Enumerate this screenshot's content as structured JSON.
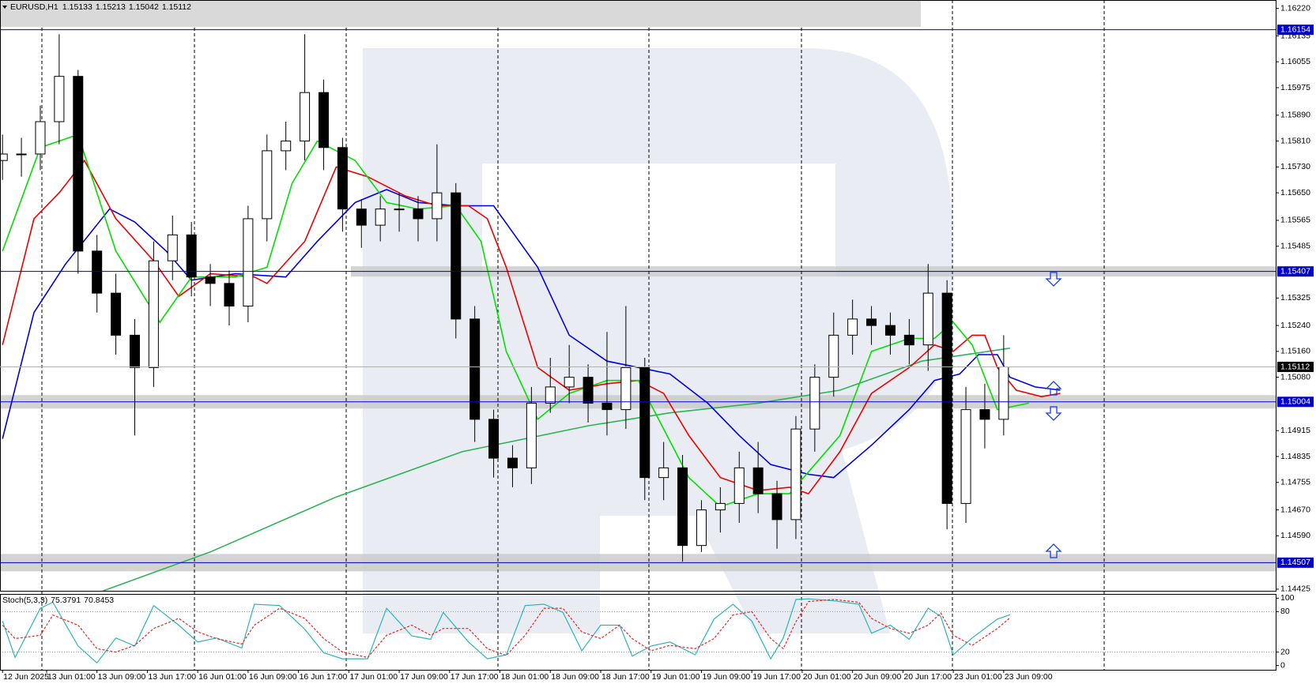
{
  "chart_data": {
    "type": "candlestick",
    "title": "EURUSD,H1",
    "header_values": [
      1.15133,
      1.15213,
      1.15042,
      1.15112
    ],
    "x": [
      0,
      3,
      6,
      9,
      12,
      15,
      18,
      21,
      24,
      27,
      30,
      33,
      36,
      39,
      42,
      45,
      48,
      51,
      54,
      57,
      60,
      63,
      66,
      69,
      72,
      75,
      78,
      81,
      84,
      87,
      90,
      93,
      96,
      99,
      102,
      105,
      108,
      111,
      114,
      117,
      120,
      123,
      126,
      129,
      132,
      135,
      138,
      141,
      144,
      147,
      150,
      153,
      156,
      159
    ],
    "open": [
      1.1575,
      1.1577,
      1.1577,
      1.1587,
      1.1601,
      1.1547,
      1.1534,
      1.1521,
      1.1511,
      1.1544,
      1.1552,
      1.1539,
      1.1537,
      1.153,
      1.1557,
      1.1578,
      1.1581,
      1.1596,
      1.1579,
      1.156,
      1.1555,
      1.156,
      1.156,
      1.1557,
      1.1565,
      1.1526,
      1.1495,
      1.1483,
      1.148,
      1.15,
      1.1505,
      1.1508,
      1.15,
      1.1498,
      1.1511,
      1.1477,
      1.148,
      1.1456,
      1.1467,
      1.1469,
      1.148,
      1.1472,
      1.1464,
      1.1492,
      1.1508,
      1.1521,
      1.1526,
      1.1524,
      1.1521,
      1.1518,
      1.1534,
      1.1469,
      1.1498,
      1.1495
    ],
    "high": [
      1.1583,
      1.1582,
      1.1592,
      1.1614,
      1.1603,
      1.1552,
      1.154,
      1.1526,
      1.155,
      1.1558,
      1.1556,
      1.1543,
      1.1541,
      1.1561,
      1.1583,
      1.1587,
      1.1614,
      1.16,
      1.1582,
      1.1563,
      1.1564,
      1.1565,
      1.1564,
      1.158,
      1.1568,
      1.153,
      1.1498,
      1.1487,
      1.1505,
      1.1514,
      1.1518,
      1.1512,
      1.1522,
      1.153,
      1.1514,
      1.1488,
      1.1484,
      1.147,
      1.1474,
      1.1485,
      1.1488,
      1.1476,
      1.1496,
      1.1512,
      1.1528,
      1.1532,
      1.153,
      1.1528,
      1.1526,
      1.1543,
      1.1538,
      1.1505,
      1.1506,
      1.1521
    ],
    "low": [
      1.1569,
      1.157,
      1.1572,
      1.158,
      1.154,
      1.1528,
      1.1515,
      1.149,
      1.1505,
      1.1538,
      1.1533,
      1.153,
      1.1524,
      1.1525,
      1.155,
      1.1572,
      1.1575,
      1.1572,
      1.1553,
      1.1548,
      1.155,
      1.1553,
      1.155,
      1.155,
      1.152,
      1.1488,
      1.1477,
      1.1474,
      1.1475,
      1.1497,
      1.15,
      1.1494,
      1.149,
      1.1492,
      1.147,
      1.147,
      1.1451,
      1.1454,
      1.146,
      1.1463,
      1.1466,
      1.1455,
      1.1458,
      1.1485,
      1.1502,
      1.1515,
      1.1518,
      1.1515,
      1.1512,
      1.151,
      1.1461,
      1.1463,
      1.1486,
      1.149
    ],
    "close": [
      1.1577,
      1.1577,
      1.1587,
      1.1601,
      1.1547,
      1.1534,
      1.1521,
      1.1511,
      1.1544,
      1.1552,
      1.1539,
      1.1537,
      1.153,
      1.1557,
      1.1578,
      1.1581,
      1.1596,
      1.1579,
      1.156,
      1.1555,
      1.156,
      1.156,
      1.1557,
      1.1565,
      1.1526,
      1.1495,
      1.1483,
      1.148,
      1.15,
      1.1505,
      1.1508,
      1.15,
      1.1498,
      1.1511,
      1.1477,
      1.148,
      1.1456,
      1.1467,
      1.1469,
      1.148,
      1.1472,
      1.1464,
      1.1492,
      1.1508,
      1.1521,
      1.1526,
      1.1524,
      1.1521,
      1.1518,
      1.1534,
      1.1469,
      1.1498,
      1.1495,
      1.15112
    ],
    "up_color": "#ffffff",
    "down_color": "#000000",
    "lines": [
      {
        "color": "#2db356",
        "x": [
          16,
          33,
          53,
          73,
          93,
          106,
          120,
          133,
          146,
          160
        ],
        "values": [
          1.1442,
          1.1454,
          1.1471,
          1.1485,
          1.1493,
          1.1497,
          1.15,
          1.1504,
          1.1513,
          1.1517
        ]
      },
      {
        "color": "#0000e0",
        "x": [
          0,
          5,
          10,
          17,
          21,
          26,
          30,
          37,
          45,
          50,
          56,
          61,
          66,
          72,
          78,
          85,
          90,
          96,
          101,
          106,
          112,
          117,
          122,
          128,
          132,
          138,
          144,
          148,
          152,
          155,
          158,
          160,
          164,
          168
        ],
        "values": [
          1.1489,
          1.1528,
          1.1543,
          1.156,
          1.1556,
          1.1547,
          1.1538,
          1.154,
          1.1539,
          1.155,
          1.1562,
          1.1566,
          1.1562,
          1.1561,
          1.1561,
          1.1542,
          1.1521,
          1.1513,
          1.1511,
          1.1509,
          1.15,
          1.149,
          1.1481,
          1.1478,
          1.1477,
          1.1487,
          1.1498,
          1.1507,
          1.1509,
          1.1515,
          1.1515,
          1.1508,
          1.1505,
          1.1504
        ]
      },
      {
        "color": "#ee0000",
        "x": [
          0,
          5,
          9,
          13,
          18,
          24,
          28,
          33,
          40,
          42,
          48,
          53,
          58,
          64,
          69,
          74,
          77,
          80,
          85,
          90,
          96,
          101,
          105,
          109,
          114,
          120,
          125,
          128,
          133,
          138,
          144,
          148,
          151,
          154,
          156,
          158,
          161,
          165,
          168
        ],
        "values": [
          1.1518,
          1.1557,
          1.1565,
          1.1575,
          1.1557,
          1.1544,
          1.1533,
          1.154,
          1.1539,
          1.1537,
          1.155,
          1.1573,
          1.157,
          1.1564,
          1.1561,
          1.1561,
          1.1557,
          1.1542,
          1.1511,
          1.1504,
          1.1506,
          1.1507,
          1.1503,
          1.149,
          1.1477,
          1.1473,
          1.1474,
          1.1472,
          1.1485,
          1.1503,
          1.1511,
          1.1518,
          1.1516,
          1.1521,
          1.1521,
          1.1511,
          1.1504,
          1.1502,
          1.1503
        ]
      },
      {
        "color": "#00e000",
        "x": [
          0,
          6,
          12,
          18,
          25,
          30,
          37,
          42,
          46,
          50,
          56,
          61,
          66,
          72,
          76,
          80,
          85,
          90,
          96,
          101,
          105,
          109,
          114,
          120,
          125,
          129,
          133,
          138,
          144,
          148,
          151,
          154,
          158,
          163
        ],
        "values": [
          1.1547,
          1.1579,
          1.1583,
          1.1547,
          1.1525,
          1.1539,
          1.1539,
          1.1542,
          1.1568,
          1.1581,
          1.1575,
          1.1562,
          1.156,
          1.1561,
          1.155,
          1.1516,
          1.1495,
          1.1503,
          1.1507,
          1.1507,
          1.1492,
          1.1477,
          1.1468,
          1.1472,
          1.1472,
          1.1481,
          1.149,
          1.1516,
          1.152,
          1.152,
          1.1525,
          1.1518,
          1.1498,
          1.15
        ]
      }
    ],
    "levels": [
      1.16154,
      1.15407,
      1.15004,
      1.14507
    ],
    "level_color": "#0000cc",
    "last_price": 1.15112,
    "xlim": [
      -0.4,
      202.2
    ],
    "ylim": [
      1.1442,
      1.16246
    ],
    "grid": false,
    "yticks": [
      {
        "value": 1.1622,
        "label": "1.16220"
      },
      1.16135,
      1.16055,
      1.15975,
      {
        "value": 1.1589,
        "label": "1.15890"
      },
      {
        "value": 1.1581,
        "label": "1.15810"
      },
      {
        "value": 1.1573,
        "label": "1.15730"
      },
      {
        "value": 1.1565,
        "label": "1.15650"
      },
      1.15565,
      1.15485,
      1.15325,
      {
        "value": 1.1524,
        "label": "1.15240"
      },
      {
        "value": 1.1516,
        "label": "1.15160"
      },
      {
        "value": 1.1508,
        "label": "1.15080"
      },
      1.14915,
      1.14835,
      1.14755,
      {
        "value": 1.1467,
        "label": "1.14670"
      },
      {
        "value": 1.1459,
        "label": "1.14590"
      },
      1.14425
    ],
    "xticks": [
      {
        "value": 0,
        "label": "12 Jun 2025"
      },
      {
        "value": 7,
        "label": "13 Jun 01:00"
      },
      {
        "value": 15,
        "label": "13 Jun 09:00"
      },
      {
        "value": 23,
        "label": "13 Jun 17:00"
      },
      {
        "value": 31,
        "label": "16 Jun 01:00"
      },
      {
        "value": 39,
        "label": "16 Jun 09:00"
      },
      {
        "value": 47,
        "label": "16 Jun 17:00"
      },
      {
        "value": 55,
        "label": "17 Jun 01:00"
      },
      {
        "value": 63,
        "label": "17 Jun 09:00"
      },
      {
        "value": 71,
        "label": "17 Jun 17:00"
      },
      {
        "value": 79,
        "label": "18 Jun 01:00"
      },
      {
        "value": 87,
        "label": "18 Jun 09:00"
      },
      {
        "value": 95,
        "label": "18 Jun 17:00"
      },
      {
        "value": 103,
        "label": "19 Jun 01:00"
      },
      {
        "value": 111,
        "label": "19 Jun 09:00"
      },
      {
        "value": 119,
        "label": "19 Jun 17:00"
      },
      {
        "value": 127,
        "label": "20 Jun 01:00"
      },
      {
        "value": 135,
        "label": "20 Jun 09:00"
      },
      {
        "value": 143,
        "label": "20 Jun 17:00"
      },
      {
        "value": 151,
        "label": "23 Jun 01:00"
      },
      {
        "value": 159,
        "label": "23 Jun 09:00"
      }
    ],
    "indicator": {
      "type": "line",
      "title": "Stoch(5,3,3)",
      "ylim": [
        -6.25,
        106.25
      ],
      "yticks": [
        100,
        80,
        20,
        0
      ],
      "series": [
        {
          "color": "#2bb5b5",
          "style": "solid",
          "x": [
            0,
            2,
            6,
            8,
            12,
            15,
            18,
            21,
            24,
            28,
            31,
            34,
            38,
            40,
            44,
            48,
            51,
            54,
            58,
            61,
            65,
            68,
            70,
            74,
            77,
            80,
            83,
            86,
            89,
            92,
            95,
            98,
            100,
            103,
            106,
            110,
            113,
            116,
            119,
            122,
            124,
            126,
            128,
            132,
            136,
            138,
            141,
            144,
            147,
            149,
            151,
            154,
            158,
            160
          ],
          "values": [
            66,
            12,
            85,
            94,
            29,
            4,
            41,
            29,
            89,
            60,
            35,
            41,
            26,
            91,
            89,
            54,
            19,
            10,
            10,
            85,
            44,
            39,
            79,
            35,
            10,
            16,
            89,
            91,
            79,
            22,
            60,
            60,
            14,
            29,
            35,
            16,
            69,
            91,
            66,
            10,
            41,
            98,
            99,
            96,
            91,
            48,
            60,
            39,
            85,
            73,
            16,
            41,
            69,
            75.3791
          ]
        },
        {
          "color": "#ee2222",
          "style": "dashed",
          "x": [
            0,
            2,
            6,
            8,
            12,
            15,
            18,
            21,
            24,
            28,
            31,
            34,
            38,
            40,
            44,
            48,
            51,
            54,
            58,
            61,
            65,
            68,
            70,
            74,
            77,
            80,
            83,
            86,
            89,
            92,
            95,
            98,
            100,
            103,
            106,
            110,
            113,
            116,
            119,
            122,
            124,
            126,
            128,
            132,
            136,
            138,
            141,
            144,
            147,
            149,
            151,
            154,
            158,
            160
          ],
          "values": [
            60,
            40,
            45,
            75,
            60,
            25,
            20,
            30,
            55,
            70,
            50,
            40,
            32,
            60,
            85,
            70,
            40,
            20,
            12,
            45,
            60,
            45,
            55,
            55,
            25,
            15,
            45,
            85,
            85,
            50,
            40,
            60,
            40,
            22,
            30,
            25,
            40,
            75,
            80,
            40,
            25,
            65,
            95,
            98,
            94,
            70,
            55,
            48,
            60,
            78,
            45,
            30,
            55,
            70.8453
          ]
        }
      ]
    }
  }
}
